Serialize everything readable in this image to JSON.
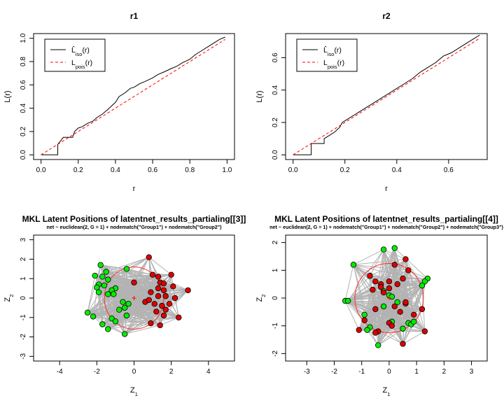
{
  "chart_data": [
    {
      "type": "line",
      "title": "r1",
      "xlabel": "r",
      "ylabel": "L(r)",
      "xlim": [
        0,
        1.0
      ],
      "ylim": [
        0,
        1.0
      ],
      "xticks": [
        "0.0",
        "0.2",
        "0.4",
        "0.6",
        "0.8",
        "1.0"
      ],
      "yticks": [
        "0.0",
        "0.2",
        "0.4",
        "0.6",
        "0.8",
        "1.0"
      ],
      "legend": {
        "position": "top-left",
        "entries": [
          {
            "label": "L̂iso(r)",
            "main": "L̂",
            "sub": "iso",
            "tail": "(r)",
            "color": "#000000",
            "style": "solid"
          },
          {
            "label": "Lpois(r)",
            "main": "L",
            "sub": "pois",
            "tail": "(r)",
            "color": "#ff0000",
            "style": "dashed"
          }
        ]
      },
      "series": [
        {
          "name": "L̂iso(r)",
          "color": "#000000",
          "style": "solid",
          "x": [
            0,
            0.09,
            0.09,
            0.11,
            0.12,
            0.17,
            0.18,
            0.2,
            0.22,
            0.25,
            0.28,
            0.3,
            0.33,
            0.36,
            0.4,
            0.42,
            0.45,
            0.48,
            0.5,
            0.53,
            0.56,
            0.6,
            0.63,
            0.66,
            0.7,
            0.73,
            0.76,
            0.8,
            0.83,
            0.86,
            0.9,
            0.93,
            0.96,
            0.99
          ],
          "y": [
            0,
            0,
            0.09,
            0.13,
            0.15,
            0.15,
            0.2,
            0.23,
            0.24,
            0.27,
            0.29,
            0.32,
            0.35,
            0.39,
            0.45,
            0.5,
            0.53,
            0.57,
            0.58,
            0.61,
            0.63,
            0.66,
            0.69,
            0.71,
            0.74,
            0.76,
            0.79,
            0.82,
            0.86,
            0.89,
            0.93,
            0.96,
            0.99,
            1.01
          ]
        },
        {
          "name": "Lpois(r)",
          "color": "#ff0000",
          "style": "dashed",
          "x": [
            0,
            0.99
          ],
          "y": [
            0,
            0.99
          ]
        }
      ]
    },
    {
      "type": "line",
      "title": "r2",
      "xlabel": "r",
      "ylabel": "L(r)",
      "xlim": [
        0,
        0.72
      ],
      "ylim": [
        0,
        0.72
      ],
      "xticks": [
        "0.0",
        "0.2",
        "0.4",
        "0.6"
      ],
      "yticks": [
        "0.0",
        "0.2",
        "0.4",
        "0.6"
      ],
      "legend": {
        "position": "top-left",
        "entries": [
          {
            "label": "L̂iso(r)",
            "main": "L̂",
            "sub": "iso",
            "tail": "(r)",
            "color": "#000000",
            "style": "solid"
          },
          {
            "label": "Lpois(r)",
            "main": "L",
            "sub": "pois",
            "tail": "(r)",
            "color": "#ff0000",
            "style": "dashed"
          }
        ]
      },
      "series": [
        {
          "name": "L̂iso(r)",
          "color": "#000000",
          "style": "solid",
          "x": [
            0,
            0.07,
            0.07,
            0.12,
            0.12,
            0.14,
            0.16,
            0.18,
            0.19,
            0.22,
            0.25,
            0.28,
            0.31,
            0.34,
            0.37,
            0.4,
            0.43,
            0.46,
            0.49,
            0.52,
            0.55,
            0.58,
            0.61,
            0.64,
            0.67,
            0.7,
            0.72
          ],
          "y": [
            0,
            0,
            0.07,
            0.07,
            0.1,
            0.12,
            0.14,
            0.17,
            0.2,
            0.23,
            0.26,
            0.29,
            0.32,
            0.35,
            0.38,
            0.41,
            0.44,
            0.47,
            0.51,
            0.54,
            0.57,
            0.61,
            0.63,
            0.66,
            0.69,
            0.72,
            0.74
          ]
        },
        {
          "name": "Lpois(r)",
          "color": "#ff0000",
          "style": "dashed",
          "x": [
            0,
            0.72
          ],
          "y": [
            0,
            0.72
          ]
        }
      ]
    },
    {
      "type": "scatter",
      "title": "MKL Latent Positions of latentnet_results_partialing[[3]]",
      "subtitle": "net ~ euclidean(2, G = 1) + nodematch(\"Group1\") + nodematch(\"Group2\")",
      "xlabel": "Z1",
      "ylabel": "Z2",
      "xlim": [
        -5,
        5
      ],
      "ylim": [
        -3,
        3
      ],
      "xticks": [
        "-4",
        "-2",
        "0",
        "2",
        "4"
      ],
      "yticks": [
        "-3",
        "-2",
        "-1",
        "0",
        "1",
        "2",
        "3"
      ],
      "circle": {
        "cx": 0,
        "cy": 0,
        "r": 1.6
      },
      "center_mark": {
        "x": 0,
        "y": 0
      },
      "series": [
        {
          "color": "#00ee00",
          "x": [
            -1.8,
            -1.5,
            -0.4,
            -2.1,
            -1.7,
            -1.4,
            -1.9,
            -1.6,
            -1.0,
            -2.0,
            -1.2,
            -1.9,
            -1.4,
            -1.1,
            -0.3,
            -0.6,
            -0.8,
            -0.5,
            -0.4,
            -1.2,
            -1.0,
            -1.7,
            -2.2,
            -0.5,
            -1.4,
            -2.5
          ],
          "y": [
            1.7,
            1.35,
            1.5,
            1.15,
            1.1,
            0.95,
            0.7,
            0.65,
            0.5,
            0.55,
            0.4,
            0.3,
            0.2,
            0.2,
            -0.3,
            -0.2,
            -0.6,
            -0.5,
            -0.9,
            -1.05,
            -1.2,
            -1.35,
            -0.95,
            -1.85,
            -1.6,
            -0.75
          ]
        },
        {
          "color": "#dd0000",
          "x": [
            0.8,
            1.0,
            1.3,
            1.4,
            1.6,
            2.0,
            1.3,
            1.6,
            2.1,
            2.9,
            0.9,
            1.3,
            1.7,
            2.2,
            0.6,
            1.1,
            1.5,
            1.9,
            1.2,
            1.6,
            2.4,
            0.9,
            1.4,
            0.8,
            1.7,
            0.0
          ],
          "y": [
            2.1,
            1.2,
            1.1,
            0.8,
            0.75,
            1.2,
            0.5,
            0.4,
            0.6,
            0.4,
            0.3,
            0.1,
            0.1,
            0.0,
            -0.2,
            -0.3,
            -0.4,
            -0.3,
            -0.7,
            -0.9,
            -1.0,
            -1.3,
            -1.4,
            -0.1,
            -0.6,
            0.8
          ]
        }
      ]
    },
    {
      "type": "scatter",
      "title": "MKL Latent Positions of latentnet_results_partialing[[4]]",
      "subtitle": "net ~ euclidean(2, G = 1) + nodematch(\"Group1\") + nodematch(\"Group2\") + nodematch(\"Group3\")",
      "xlabel": "Z1",
      "ylabel": "Z2",
      "xlim": [
        -3.5,
        3.3
      ],
      "ylim": [
        -2.1,
        2.1
      ],
      "xticks": [
        "-3",
        "-2",
        "-1",
        "0",
        "1",
        "2",
        "3"
      ],
      "yticks": [
        "-2",
        "-1",
        "0",
        "1",
        "2"
      ],
      "circle": {
        "cx": 0,
        "cy": 0,
        "r": 1.25
      },
      "center_mark": {
        "x": 0,
        "y": 0
      },
      "series": [
        {
          "color": "#00ee00",
          "x": [
            -0.2,
            0.2,
            -1.3,
            1.4,
            1.3,
            1.2,
            -0.2,
            0.0,
            0.3,
            -1.6,
            -1.5,
            0.1,
            -0.7,
            -0.8,
            -0.9,
            0.7,
            0.8,
            0.9,
            -0.4,
            0.5,
            -0.2,
            0.1
          ],
          "y": [
            1.75,
            1.8,
            1.2,
            0.7,
            0.6,
            0.45,
            0.25,
            0.1,
            -0.15,
            -0.1,
            -0.1,
            -0.85,
            -1.05,
            -1.15,
            -0.6,
            -0.9,
            -0.95,
            -0.85,
            -1.7,
            -1.1,
            -0.3,
            0.05
          ]
        },
        {
          "color": "#dd0000",
          "x": [
            0.6,
            0.2,
            0.7,
            -0.7,
            -0.5,
            -0.3,
            0.5,
            -0.6,
            -0.3,
            -0.2,
            0.0,
            0.3,
            -0.5,
            0.2,
            0.4,
            0.6,
            -0.9,
            0.0,
            0.1,
            -1.1,
            0.5,
            0.9,
            1.2,
            -0.4,
            -0.5,
            1.3,
            0.6,
            0.0
          ],
          "y": [
            1.4,
            1.2,
            1.0,
            0.8,
            0.6,
            0.5,
            0.7,
            0.3,
            0.4,
            0.2,
            0.6,
            0.5,
            -0.4,
            -0.3,
            -0.5,
            -0.2,
            -0.8,
            -0.9,
            -1.0,
            -1.15,
            -1.65,
            -0.6,
            -0.4,
            -1.2,
            -1.25,
            -1.2,
            -0.15,
            0.35
          ]
        }
      ]
    }
  ]
}
